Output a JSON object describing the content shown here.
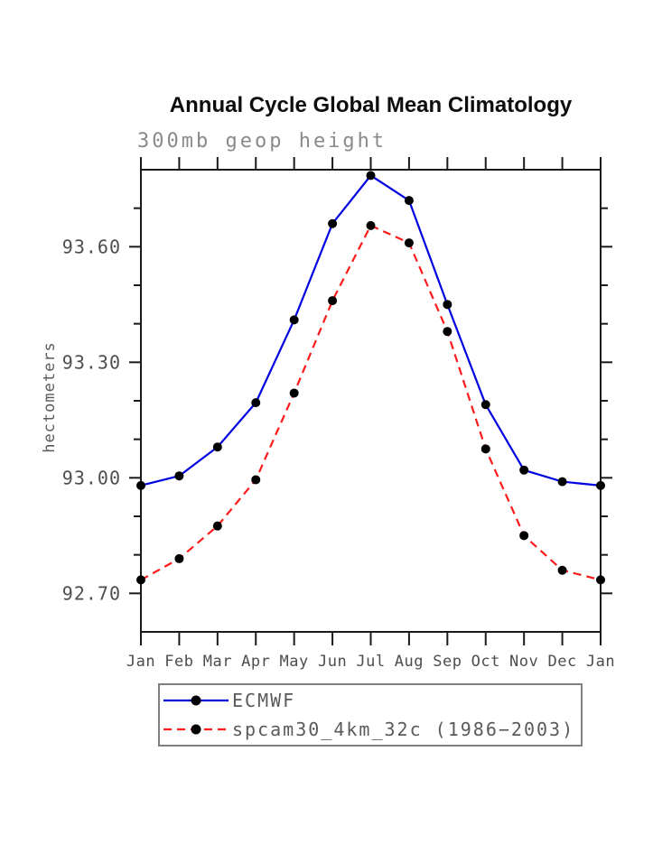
{
  "page": {
    "background": "#ffffff"
  },
  "chart": {
    "title": "Annual Cycle Global Mean Climatology",
    "subtitle": "300mb geop height",
    "ylabel": "hectometers",
    "legend": {
      "items": [
        {
          "label": "ECMWF"
        },
        {
          "label": "spcam30_4km_32c (1986−2003)"
        }
      ]
    }
  },
  "chart_data": {
    "type": "line",
    "title": "Annual Cycle Global Mean Climatology",
    "subtitle": "300mb geop height",
    "xlabel": "",
    "ylabel": "hectometers",
    "categories": [
      "Jan",
      "Feb",
      "Mar",
      "Apr",
      "May",
      "Jun",
      "Jul",
      "Aug",
      "Sep",
      "Oct",
      "Nov",
      "Dec",
      "Jan"
    ],
    "series": [
      {
        "name": "ECMWF",
        "color": "#0000e0",
        "style": "solid",
        "marker": "circle",
        "marker_color": "#000000",
        "values": [
          92.98,
          93.005,
          93.08,
          93.195,
          93.41,
          93.66,
          93.785,
          93.72,
          93.45,
          93.19,
          93.02,
          92.99,
          92.98
        ]
      },
      {
        "name": "spcam30_4km_32c (1986−2003)",
        "color": "#ff1a1a",
        "style": "dashed",
        "marker": "circle",
        "marker_color": "#000000",
        "values": [
          92.735,
          92.79,
          92.875,
          92.995,
          93.22,
          93.46,
          93.655,
          93.61,
          93.38,
          93.075,
          92.85,
          92.76,
          92.735
        ]
      }
    ],
    "ylim": [
      92.6,
      93.8
    ],
    "y_major_ticks": [
      92.7,
      93.0,
      93.3,
      93.6
    ],
    "y_major_tick_labels": [
      "92.70",
      "93.00",
      "93.30",
      "93.60"
    ],
    "y_minor_tick_step": 0.1,
    "grid": false,
    "legend_position": "bottom-left",
    "axis_color": "#1a1a1a",
    "tick_label_color": "#4d4d4d"
  }
}
